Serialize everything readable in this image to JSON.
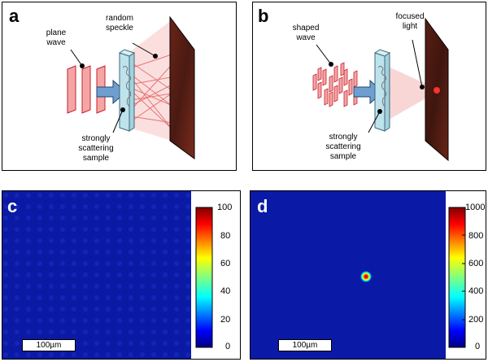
{
  "panel_a": {
    "letter": "a",
    "label_plane_wave": [
      "plane",
      "wave"
    ],
    "label_random_speckle": [
      "random",
      "speckle"
    ],
    "label_sample": [
      "strongly",
      "scattering",
      "sample"
    ]
  },
  "panel_b": {
    "letter": "b",
    "label_shaped_wave": [
      "shaped",
      "wave"
    ],
    "label_focused_light": [
      "focused",
      "light"
    ],
    "label_sample": [
      "strongly",
      "scattering",
      "sample"
    ]
  },
  "panel_c": {
    "letter": "c",
    "scale_bar": "100µm",
    "colorbar_ticks": [
      "100",
      "80",
      "60",
      "40",
      "20",
      "0"
    ]
  },
  "panel_d": {
    "letter": "d",
    "scale_bar": "100µm",
    "colorbar_ticks": [
      "1000",
      "800",
      "600",
      "400",
      "200",
      "0"
    ]
  },
  "colors": {
    "map_background": "#0a1aa6",
    "wave_fill": "#f4a6a6",
    "wave_stroke": "#c8202a",
    "arrow": "#6f9fd0",
    "glass": "#bfe3ec",
    "screen": "#3a1410"
  }
}
